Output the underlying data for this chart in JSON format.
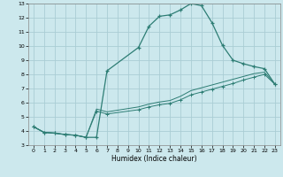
{
  "xlabel": "Humidex (Indice chaleur)",
  "background_color": "#cce8ed",
  "grid_color": "#aacdd4",
  "line_color": "#2d7d74",
  "xlim": [
    -0.5,
    23.5
  ],
  "ylim": [
    3,
    13
  ],
  "xticks": [
    0,
    1,
    2,
    3,
    4,
    5,
    6,
    7,
    8,
    9,
    10,
    11,
    12,
    13,
    14,
    15,
    16,
    17,
    18,
    19,
    20,
    21,
    22,
    23
  ],
  "yticks": [
    3,
    4,
    5,
    6,
    7,
    8,
    9,
    10,
    11,
    12,
    13
  ],
  "curve1_x": [
    0,
    1,
    2,
    3,
    4,
    5,
    6,
    7,
    10,
    11,
    12,
    13,
    14,
    15,
    16,
    17,
    18,
    19,
    20,
    21,
    22,
    23
  ],
  "curve1_y": [
    4.3,
    3.9,
    3.85,
    3.75,
    3.7,
    3.55,
    3.55,
    8.25,
    9.9,
    11.4,
    12.1,
    12.2,
    12.55,
    13.0,
    12.85,
    11.65,
    10.05,
    9.0,
    8.75,
    8.55,
    8.4,
    7.3
  ],
  "curve2_x": [
    0,
    1,
    2,
    3,
    4,
    5,
    6,
    7,
    10,
    11,
    12,
    13,
    14,
    15,
    16,
    17,
    18,
    19,
    20,
    21,
    22,
    23
  ],
  "curve2_y": [
    4.3,
    3.9,
    3.85,
    3.75,
    3.7,
    3.55,
    5.4,
    5.2,
    5.5,
    5.7,
    5.85,
    5.95,
    6.2,
    6.55,
    6.75,
    6.95,
    7.15,
    7.35,
    7.6,
    7.8,
    8.0,
    7.3
  ],
  "curve3_x": [
    0,
    1,
    2,
    3,
    4,
    5,
    6,
    7,
    10,
    11,
    12,
    13,
    14,
    15,
    16,
    17,
    18,
    19,
    20,
    21,
    22,
    23
  ],
  "curve3_y": [
    4.3,
    3.9,
    3.85,
    3.75,
    3.7,
    3.55,
    5.55,
    5.35,
    5.7,
    5.9,
    6.05,
    6.15,
    6.45,
    6.85,
    7.05,
    7.25,
    7.45,
    7.65,
    7.85,
    8.05,
    8.15,
    7.3
  ]
}
